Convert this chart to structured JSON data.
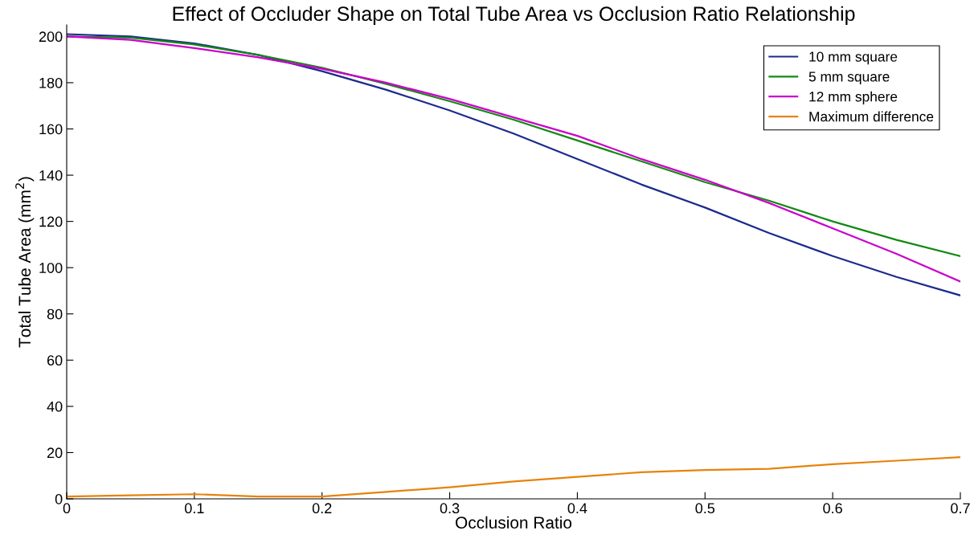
{
  "chart_data": {
    "type": "line",
    "title": "Effect of Occluder Shape on Total Tube Area vs Occlusion Ratio Relationship",
    "xlabel": "Occlusion Ratio",
    "ylabel": "Total Tube Area (mm$^{2}$)",
    "x": [
      0,
      0.05,
      0.1,
      0.15,
      0.2,
      0.25,
      0.3,
      0.35,
      0.4,
      0.45,
      0.5,
      0.55,
      0.6,
      0.65,
      0.7
    ],
    "series": [
      {
        "name": "10 mm square",
        "color": "#1c2a8c",
        "values": [
          201,
          200,
          197,
          192,
          185,
          177,
          168,
          158,
          147,
          136,
          126,
          115,
          105,
          96,
          88
        ]
      },
      {
        "name": "5 mm square",
        "color": "#138a13",
        "values": [
          200,
          199.5,
          196.5,
          192,
          186.5,
          179.5,
          172,
          164,
          155,
          146,
          137,
          129,
          120,
          112,
          105
        ]
      },
      {
        "name": "12 mm sphere",
        "color": "#cc00cc",
        "values": [
          200,
          198.5,
          195,
          191,
          186,
          180,
          173,
          165,
          157,
          147,
          138,
          128,
          117,
          106,
          94
        ]
      },
      {
        "name": "Maximum difference",
        "color": "#e8820c",
        "values": [
          1,
          1.5,
          2,
          1,
          1,
          3,
          5,
          7.5,
          9.5,
          11.5,
          12.5,
          13,
          15,
          16.5,
          18
        ]
      }
    ],
    "xlim": [
      0,
      0.7
    ],
    "xticks": [
      0,
      0.1,
      0.2,
      0.3,
      0.4,
      0.5,
      0.6,
      0.7
    ],
    "ylim": [
      0,
      205
    ],
    "yticks": [
      0,
      20,
      40,
      60,
      80,
      100,
      120,
      140,
      160,
      180,
      200
    ],
    "grid": false,
    "legend": "top right",
    "marker": "none",
    "line_style": "solid"
  }
}
